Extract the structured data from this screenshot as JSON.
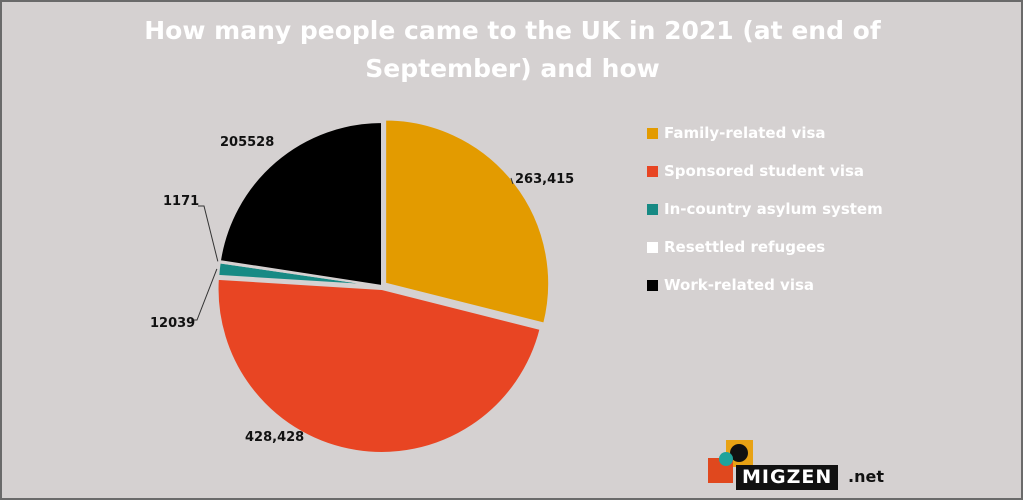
{
  "chart_data": {
    "type": "pie",
    "title": "How many people came to the UK in 2021 (at end of September) and how",
    "start_angle_deg": 0,
    "direction": "clockwise",
    "legend_position": "right",
    "slices": [
      {
        "name": "Family-related visa",
        "value": 263415,
        "label": "263,415",
        "color": "#e39b00"
      },
      {
        "name": "Sponsored student visa",
        "value": 428428,
        "label": "428,428",
        "color": "#e84523"
      },
      {
        "name": "In-country asylum system",
        "value": 12039,
        "label": "12039",
        "color": "#178a84"
      },
      {
        "name": "Resettled refugees",
        "value": 1171,
        "label": "1171",
        "color": "#ffffff"
      },
      {
        "name": "Work-related visa",
        "value": 205528,
        "label": "205528",
        "color": "#000000"
      }
    ]
  },
  "logo": {
    "word": "MIGZEN",
    "suffix": ".net"
  }
}
